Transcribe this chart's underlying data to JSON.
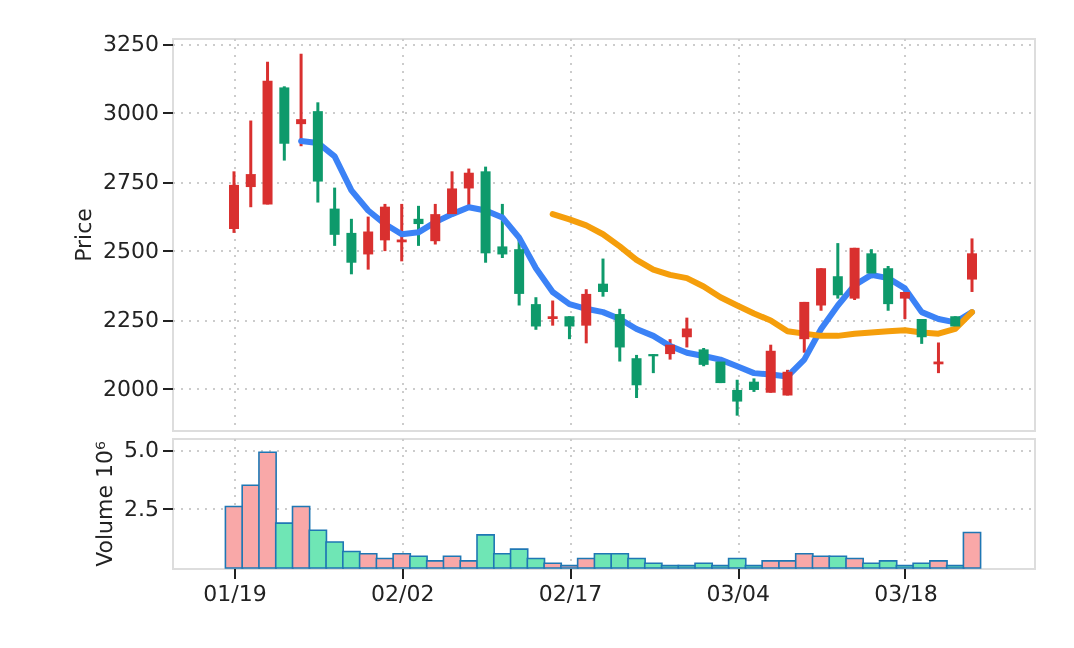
{
  "chart_data": [
    {
      "type": "candlestick",
      "ylabel": "Price",
      "categories": [
        null,
        null,
        null,
        null,
        null,
        null,
        null,
        null,
        null,
        null,
        null,
        null,
        null,
        null,
        null,
        null,
        null,
        null,
        null,
        null,
        null,
        null,
        null,
        null,
        null,
        null,
        null,
        null,
        null,
        null,
        null,
        null,
        null,
        null,
        null,
        null,
        null,
        null,
        null,
        null,
        null,
        null,
        null,
        null,
        null
      ],
      "ohlc": [
        [
          2578,
          2787,
          2564,
          2738
        ],
        [
          2730,
          2971,
          2657,
          2777
        ],
        [
          2667,
          3184,
          2667,
          3115
        ],
        [
          3091,
          3095,
          2826,
          2887
        ],
        [
          2958,
          3213,
          2878,
          2976
        ],
        [
          3005,
          3037,
          2674,
          2750
        ],
        [
          2652,
          2728,
          2517,
          2557
        ],
        [
          2564,
          2615,
          2414,
          2456
        ],
        [
          2486,
          2623,
          2431,
          2569
        ],
        [
          2537,
          2669,
          2498,
          2659
        ],
        [
          2530,
          2669,
          2461,
          2540
        ],
        [
          2615,
          2662,
          2517,
          2596
        ],
        [
          2534,
          2669,
          2522,
          2632
        ],
        [
          2632,
          2787,
          2632,
          2725
        ],
        [
          2725,
          2797,
          2657,
          2782
        ],
        [
          2787,
          2804,
          2456,
          2490
        ],
        [
          2515,
          2669,
          2473,
          2486
        ],
        [
          2505,
          2542,
          2301,
          2343
        ],
        [
          2306,
          2331,
          2213,
          2225
        ],
        [
          2252,
          2319,
          2228,
          2262
        ],
        [
          2262,
          2262,
          2179,
          2225
        ],
        [
          2228,
          2360,
          2164,
          2343
        ],
        [
          2380,
          2471,
          2333,
          2350
        ],
        [
          2270,
          2289,
          2098,
          2149
        ],
        [
          2110,
          2122,
          1966,
          2012
        ],
        [
          2125,
          2125,
          2056,
          2117
        ],
        [
          2125,
          2179,
          2105,
          2159
        ],
        [
          2186,
          2257,
          2149,
          2218
        ],
        [
          2142,
          2147,
          2081,
          2086
        ],
        [
          2098,
          2105,
          2020,
          2020
        ],
        [
          1995,
          2032,
          1902,
          1953
        ],
        [
          2025,
          2037,
          1988,
          1995
        ],
        [
          1985,
          2159,
          1985,
          2137
        ],
        [
          1975,
          2068,
          1975,
          2061
        ],
        [
          2179,
          2314,
          2130,
          2314
        ],
        [
          2301,
          2436,
          2282,
          2436
        ],
        [
          2407,
          2527,
          2326,
          2338
        ],
        [
          2326,
          2510,
          2321,
          2510
        ],
        [
          2490,
          2505,
          2400,
          2417
        ],
        [
          2436,
          2444,
          2282,
          2306
        ],
        [
          2326,
          2355,
          2252,
          2350
        ],
        [
          2252,
          2252,
          2162,
          2186
        ],
        [
          2088,
          2167,
          2056,
          2098
        ],
        [
          2262,
          2262,
          2225,
          2225
        ],
        [
          2395,
          2544,
          2350,
          2490
        ]
      ],
      "colors": [
        "#d9302f",
        "#d9302f",
        "#d9302f",
        "#0e9a6b",
        "#d9302f",
        "#0e9a6b",
        "#0e9a6b",
        "#0e9a6b",
        "#d9302f",
        "#d9302f",
        "#d9302f",
        "#0e9a6b",
        "#d9302f",
        "#d9302f",
        "#d9302f",
        "#0e9a6b",
        "#0e9a6b",
        "#0e9a6b",
        "#0e9a6b",
        "#d9302f",
        "#0e9a6b",
        "#d9302f",
        "#0e9a6b",
        "#0e9a6b",
        "#0e9a6b",
        "#0e9a6b",
        "#d9302f",
        "#d9302f",
        "#0e9a6b",
        "#0e9a6b",
        "#0e9a6b",
        "#0e9a6b",
        "#d9302f",
        "#d9302f",
        "#d9302f",
        "#d9302f",
        "#0e9a6b",
        "#d9302f",
        "#0e9a6b",
        "#0e9a6b",
        "#d9302f",
        "#0e9a6b",
        "#d9302f",
        "#0e9a6b",
        "#d9302f"
      ],
      "series": [
        {
          "type": "line",
          "color": "#3b82f6",
          "values": [
            null,
            null,
            null,
            null,
            2897,
            2890,
            2841,
            2718,
            2645,
            2596,
            2559,
            2566,
            2603,
            2632,
            2657,
            2645,
            2620,
            2547,
            2436,
            2350,
            2306,
            2289,
            2277,
            2252,
            2216,
            2191,
            2154,
            2130,
            2118,
            2105,
            2081,
            2056,
            2051,
            2044,
            2105,
            2216,
            2301,
            2375,
            2412,
            2400,
            2363,
            2277,
            2252,
            2240,
            2277
          ]
        },
        {
          "type": "line",
          "color": "#f59e0b",
          "values": [
            null,
            null,
            null,
            null,
            null,
            null,
            null,
            null,
            null,
            null,
            null,
            null,
            null,
            null,
            null,
            null,
            null,
            null,
            null,
            2632,
            2613,
            2591,
            2559,
            2515,
            2466,
            2431,
            2412,
            2400,
            2370,
            2331,
            2301,
            2272,
            2247,
            2208,
            2199,
            2191,
            2191,
            2199,
            2203,
            2208,
            2211,
            2203,
            2199,
            2216,
            2277
          ]
        }
      ],
      "ylim": [
        1850,
        3270
      ],
      "yticks": [
        2000,
        2250,
        2500,
        2750,
        3000,
        3250
      ],
      "grid": true,
      "tick_labels": "y"
    },
    {
      "type": "bar",
      "ylabel": "Volume  10⁶",
      "categories": [
        "01/19",
        null,
        null,
        null,
        null,
        null,
        null,
        null,
        null,
        null,
        "02/02",
        null,
        null,
        null,
        null,
        null,
        null,
        null,
        null,
        null,
        "02/17",
        null,
        null,
        null,
        null,
        null,
        null,
        null,
        null,
        null,
        "03/04",
        null,
        null,
        null,
        null,
        null,
        null,
        null,
        null,
        null,
        "03/18",
        null,
        null,
        null,
        null
      ],
      "values": [
        2.6,
        3.5,
        4.9,
        1.9,
        2.6,
        1.6,
        1.1,
        0.7,
        0.6,
        0.4,
        0.6,
        0.5,
        0.3,
        0.5,
        0.3,
        1.4,
        0.6,
        0.8,
        0.4,
        0.2,
        0.1,
        0.4,
        0.6,
        0.6,
        0.4,
        0.2,
        0.1,
        0.1,
        0.2,
        0.1,
        0.4,
        0.1,
        0.3,
        0.3,
        0.6,
        0.5,
        0.5,
        0.4,
        0.2,
        0.3,
        0.1,
        0.2,
        0.3,
        0.1,
        1.5
      ],
      "colors": [
        "#f9a8a8",
        "#f9a8a8",
        "#f9a8a8",
        "#6fe6b5",
        "#f9a8a8",
        "#6fe6b5",
        "#6fe6b5",
        "#6fe6b5",
        "#f9a8a8",
        "#f9a8a8",
        "#f9a8a8",
        "#6fe6b5",
        "#f9a8a8",
        "#f9a8a8",
        "#f9a8a8",
        "#6fe6b5",
        "#6fe6b5",
        "#6fe6b5",
        "#6fe6b5",
        "#f9a8a8",
        "#f9a8a8",
        "#f9a8a8",
        "#6fe6b5",
        "#6fe6b5",
        "#6fe6b5",
        "#6fe6b5",
        "#6fe6b5",
        "#6fe6b5",
        "#6fe6b5",
        "#6fe6b5",
        "#6fe6b5",
        "#6fe6b5",
        "#f9a8a8",
        "#f9a8a8",
        "#f9a8a8",
        "#f9a8a8",
        "#6fe6b5",
        "#f9a8a8",
        "#6fe6b5",
        "#6fe6b5",
        "#6fe6b5",
        "#6fe6b5",
        "#f9a8a8",
        "#6fe6b5",
        "#f9a8a8"
      ],
      "ylim": [
        0,
        5.5
      ],
      "yticks": [
        2.5,
        {
          "value": 5,
          "label": "5.0"
        }
      ],
      "grid": true
    }
  ]
}
